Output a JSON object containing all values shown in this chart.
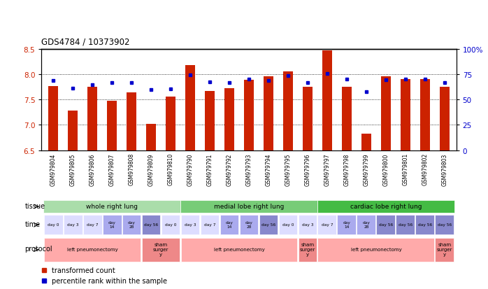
{
  "title": "GDS4784 / 10373902",
  "samples": [
    "GSM979804",
    "GSM979805",
    "GSM979806",
    "GSM979807",
    "GSM979808",
    "GSM979809",
    "GSM979810",
    "GSM979790",
    "GSM979791",
    "GSM979792",
    "GSM979793",
    "GSM979794",
    "GSM979795",
    "GSM979796",
    "GSM979797",
    "GSM979798",
    "GSM979799",
    "GSM979800",
    "GSM979801",
    "GSM979802",
    "GSM979803"
  ],
  "bar_values": [
    7.77,
    7.28,
    7.75,
    7.47,
    7.64,
    7.02,
    7.56,
    8.18,
    7.67,
    7.73,
    7.89,
    7.96,
    8.06,
    7.75,
    8.47,
    7.75,
    6.83,
    7.96,
    7.91,
    7.91,
    7.75
  ],
  "dot_values": [
    7.88,
    7.73,
    7.8,
    7.83,
    7.84,
    7.7,
    7.71,
    7.99,
    7.85,
    7.84,
    7.9,
    7.88,
    7.97,
    7.84,
    8.01,
    7.9,
    7.65,
    7.89,
    7.9,
    7.91,
    7.84
  ],
  "ylim": [
    6.5,
    8.5
  ],
  "y2lim": [
    0,
    100
  ],
  "yticks": [
    6.5,
    7.0,
    7.5,
    8.0,
    8.5
  ],
  "y2ticks": [
    0,
    25,
    50,
    75,
    100
  ],
  "y2tick_labels": [
    "0",
    "25",
    "50",
    "75",
    "100%"
  ],
  "bar_color": "#cc2200",
  "dot_color": "#0000cc",
  "grid_color": "#000000",
  "tissue_groups": [
    {
      "label": "whole right lung",
      "start": 0,
      "end": 6,
      "color": "#aaddaa"
    },
    {
      "label": "medial lobe right lung",
      "start": 7,
      "end": 13,
      "color": "#77cc77"
    },
    {
      "label": "cardiac lobe right lung",
      "start": 14,
      "end": 20,
      "color": "#44bb44"
    }
  ],
  "time_map": [
    0,
    1,
    2,
    3,
    4,
    5,
    0,
    1,
    2,
    3,
    4,
    5,
    0,
    1,
    2,
    3,
    4,
    5,
    5,
    5,
    5
  ],
  "time_label_list": [
    "day 0",
    "day 3",
    "day 7",
    "day\n14",
    "day\n28",
    "day 56"
  ],
  "time_color_list": [
    "#ddddff",
    "#ddddff",
    "#ddddff",
    "#aaaaee",
    "#aaaaee",
    "#8888cc"
  ],
  "protocol_groups": [
    {
      "label": "left pneumonectomy",
      "start": 0,
      "end": 4,
      "color": "#ffaaaa"
    },
    {
      "label": "sham\nsurger\ny",
      "start": 5,
      "end": 6,
      "color": "#ee8888"
    },
    {
      "label": "left pneumonectomy",
      "start": 7,
      "end": 12,
      "color": "#ffaaaa"
    },
    {
      "label": "sham\nsurger\ny",
      "start": 13,
      "end": 13,
      "color": "#ee8888"
    },
    {
      "label": "left pneumonectomy",
      "start": 14,
      "end": 19,
      "color": "#ffaaaa"
    },
    {
      "label": "sham\nsurger\ny",
      "start": 20,
      "end": 20,
      "color": "#ee8888"
    }
  ],
  "background_color": "#ffffff"
}
